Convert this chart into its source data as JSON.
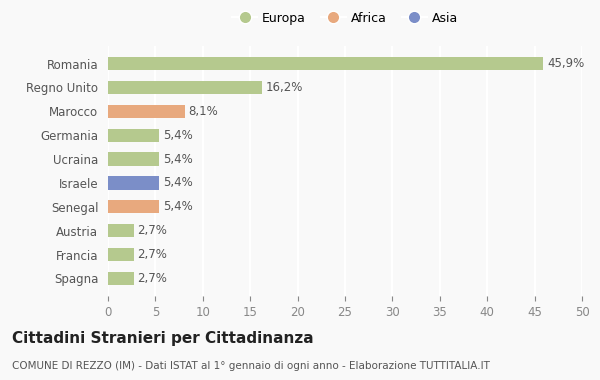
{
  "categories": [
    "Romania",
    "Regno Unito",
    "Marocco",
    "Germania",
    "Ucraina",
    "Israele",
    "Senegal",
    "Austria",
    "Francia",
    "Spagna"
  ],
  "values": [
    45.9,
    16.2,
    8.1,
    5.4,
    5.4,
    5.4,
    5.4,
    2.7,
    2.7,
    2.7
  ],
  "labels": [
    "45,9%",
    "16,2%",
    "8,1%",
    "5,4%",
    "5,4%",
    "5,4%",
    "5,4%",
    "2,7%",
    "2,7%",
    "2,7%"
  ],
  "colors": [
    "#b5c98e",
    "#b5c98e",
    "#e8a97e",
    "#b5c98e",
    "#b5c98e",
    "#7b8ec8",
    "#e8a97e",
    "#b5c98e",
    "#b5c98e",
    "#b5c98e"
  ],
  "legend_items": [
    {
      "label": "Europa",
      "color": "#b5c98e"
    },
    {
      "label": "Africa",
      "color": "#e8a97e"
    },
    {
      "label": "Asia",
      "color": "#7b8ec8"
    }
  ],
  "xlim": [
    0,
    50
  ],
  "xticks": [
    0,
    5,
    10,
    15,
    20,
    25,
    30,
    35,
    40,
    45,
    50
  ],
  "title": "Cittadini Stranieri per Cittadinanza",
  "subtitle": "COMUNE DI REZZO (IM) - Dati ISTAT al 1° gennaio di ogni anno - Elaborazione TUTTITALIA.IT",
  "background_color": "#f9f9f9",
  "grid_color": "#ffffff",
  "bar_height": 0.55,
  "label_fontsize": 8.5,
  "tick_fontsize": 8.5,
  "title_fontsize": 11,
  "subtitle_fontsize": 7.5
}
